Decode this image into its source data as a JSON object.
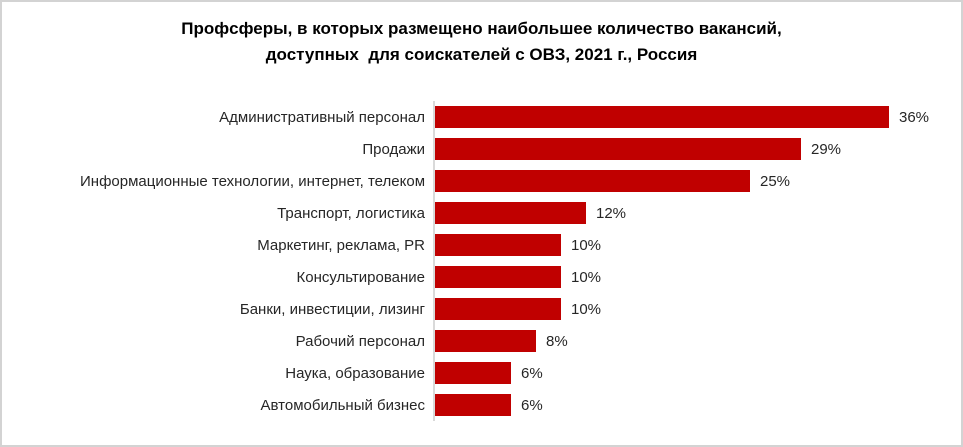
{
  "chart_data": {
    "type": "bar",
    "orientation": "horizontal",
    "title": "Профсферы, в которых размещено наибольшее количество вакансий, доступных для соискателей с ОВЗ, 2021 г., Россия",
    "title_lines": [
      "Профсферы, в которых размещено наибольшее количество вакансий,",
      "доступных  для соискателей с ОВЗ, 2021 г., Россия"
    ],
    "categories": [
      "Административный персонал",
      "Продажи",
      "Информационные технологии, интернет, телеком",
      "Транспорт, логистика",
      "Маркетинг, реклама, PR",
      "Консультирование",
      "Банки, инвестиции, лизинг",
      "Рабочий персонал",
      "Наука, образование",
      "Автомобильный бизнес"
    ],
    "values": [
      36,
      29,
      25,
      12,
      10,
      10,
      10,
      8,
      6,
      6
    ],
    "value_labels": [
      "36%",
      "29%",
      "25%",
      "12%",
      "10%",
      "10%",
      "10%",
      "8%",
      "6%",
      "6%"
    ],
    "xlabel": "",
    "ylabel": "",
    "xlim": [
      0,
      36
    ],
    "grid": false,
    "legend": false,
    "bar_color": "#c00000",
    "axis_line_color": "#d9d9d9",
    "text_color": "#262626",
    "title_color": "#000000",
    "frame_border_color": "#d3d3d3",
    "background_color": "#ffffff"
  }
}
